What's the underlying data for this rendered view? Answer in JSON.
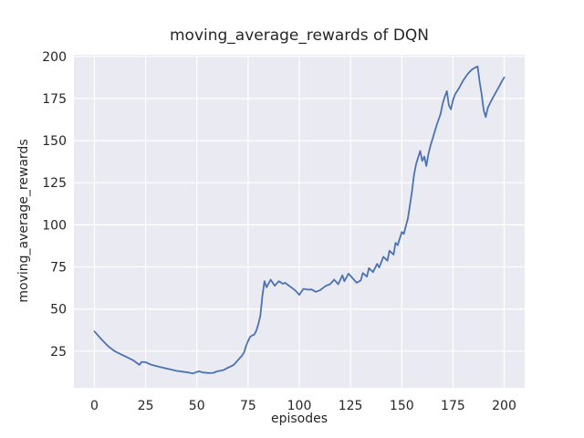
{
  "figure": {
    "background": "#ffffff",
    "text_color": "#262626"
  },
  "chart_data": {
    "type": "line",
    "title": "moving_average_rewards of DQN",
    "xlabel": "episodes",
    "ylabel": "moving_average_rewards",
    "x_ticks": [
      0,
      25,
      50,
      75,
      100,
      125,
      150,
      175,
      200
    ],
    "y_ticks": [
      25,
      50,
      75,
      100,
      125,
      150,
      175,
      200
    ],
    "xlim": [
      -10,
      210
    ],
    "ylim": [
      3.2,
      201
    ],
    "grid": true,
    "legend": "none",
    "axes_background": "#eaeaf2",
    "grid_color": "#ffffff",
    "line_color": "#4c72b0",
    "series": [
      {
        "name": "DQN moving average reward",
        "x": [
          0,
          2,
          4,
          7,
          10,
          13,
          16,
          19,
          20,
          22,
          23,
          25,
          28,
          31,
          34,
          37,
          40,
          43,
          46,
          48,
          51,
          53,
          56,
          58,
          60,
          63,
          65,
          68,
          70,
          72,
          73,
          74,
          75,
          76,
          77,
          78,
          79,
          80,
          81,
          82,
          83,
          84,
          86,
          88,
          90,
          92,
          93,
          96,
          98,
          100,
          102,
          104,
          106,
          108,
          110,
          113,
          115,
          117,
          119,
          121,
          122,
          124,
          126,
          128,
          130,
          131,
          133,
          134,
          136,
          138,
          139,
          141,
          143,
          144,
          146,
          147,
          148,
          150,
          151,
          153,
          154,
          155,
          156,
          157,
          158,
          159,
          160,
          161,
          162,
          163,
          164,
          165,
          166,
          167,
          168,
          169,
          170,
          171,
          172,
          173,
          174,
          175,
          176,
          178,
          180,
          182,
          184,
          186,
          187,
          188,
          189,
          190,
          191,
          192,
          194,
          197,
          199,
          200
        ],
        "y": [
          36.7,
          34,
          31.3,
          27.6,
          24.9,
          23.1,
          21.3,
          19.5,
          18.6,
          16.8,
          18.6,
          18.4,
          16.8,
          15.9,
          15,
          14.2,
          13.3,
          12.8,
          12.3,
          11.7,
          13,
          12.3,
          12,
          12.1,
          13,
          13.7,
          15,
          16.8,
          19.5,
          22.3,
          24.1,
          28,
          31,
          33.5,
          34.3,
          34.8,
          37,
          41,
          46,
          58,
          66.5,
          62.9,
          67.4,
          63.8,
          66.5,
          65,
          65.6,
          62.9,
          61.1,
          58.4,
          62,
          61.5,
          61.6,
          60.2,
          61.1,
          63.8,
          64.7,
          67.4,
          64.7,
          70,
          66.5,
          71,
          68.3,
          65.6,
          67,
          71.4,
          69.2,
          74.3,
          71.9,
          76.8,
          74.7,
          81,
          78.7,
          84.6,
          82.3,
          89.3,
          87.9,
          95.7,
          94.6,
          103.8,
          112,
          119.8,
          129.7,
          136,
          140,
          143.9,
          138,
          140.5,
          134.9,
          142,
          146.9,
          151,
          155,
          159,
          162.5,
          166,
          172.2,
          176,
          179.4,
          171,
          168.6,
          174,
          177.5,
          181.2,
          185.7,
          189.3,
          192,
          193.5,
          194,
          185,
          177.5,
          168,
          164,
          169.5,
          174.5,
          181,
          185.5,
          187.5
        ]
      }
    ]
  }
}
